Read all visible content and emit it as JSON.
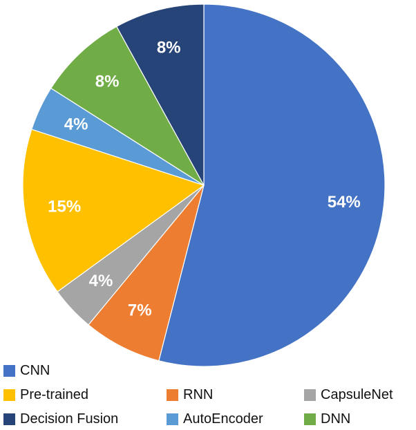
{
  "chart_data": {
    "type": "pie",
    "series": [
      {
        "name": "CNN",
        "value": 54,
        "label": "54%",
        "color": "#4472C4"
      },
      {
        "name": "RNN",
        "value": 7,
        "label": "7%",
        "color": "#ED7D31"
      },
      {
        "name": "CapsuleNet",
        "value": 4,
        "label": "4%",
        "color": "#A5A5A5"
      },
      {
        "name": "Pre-trained",
        "value": 15,
        "label": "15%",
        "color": "#FFC000"
      },
      {
        "name": "AutoEncoder",
        "value": 4,
        "label": "4%",
        "color": "#5B9BD5"
      },
      {
        "name": "DNN",
        "value": 8,
        "label": "8%",
        "color": "#70AD47"
      },
      {
        "name": "Decision Fusion",
        "value": 8,
        "label": "8%",
        "color": "#264478"
      }
    ],
    "legend": {
      "placement": "bottom",
      "entries": [
        {
          "name": "CNN",
          "color": "#4472C4"
        },
        {
          "name": "Pre-trained",
          "color": "#FFC000"
        },
        {
          "name": "RNN",
          "color": "#ED7D31"
        },
        {
          "name": "CapsuleNet",
          "color": "#A5A5A5"
        },
        {
          "name": "Decision Fusion",
          "color": "#264478"
        },
        {
          "name": "AutoEncoder",
          "color": "#5B9BD5"
        },
        {
          "name": "DNN",
          "color": "#70AD47"
        }
      ]
    },
    "title": "",
    "data_label_color": "#FFFFFF"
  }
}
